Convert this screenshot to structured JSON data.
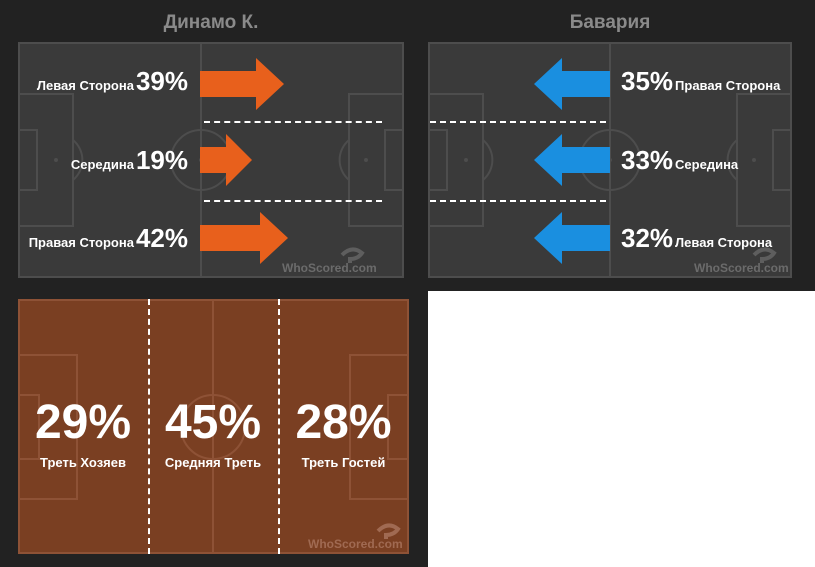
{
  "colors": {
    "background": "#222222",
    "panel": "#3a3a3a",
    "attack_left": "#e8601c",
    "attack_right": "#1a8fe0",
    "zones_bg": "#7a3f22"
  },
  "home": {
    "team": "Динамо К.",
    "rows": [
      {
        "label": "Левая Сторона",
        "pct": "39%",
        "value": 39
      },
      {
        "label": "Середина",
        "pct": "19%",
        "value": 19
      },
      {
        "label": "Правая Сторона",
        "pct": "42%",
        "value": 42
      }
    ],
    "watermark": "WhoScored.com"
  },
  "away": {
    "team": "Бавария",
    "rows": [
      {
        "label": "Правая Сторона",
        "pct": "35%",
        "value": 35
      },
      {
        "label": "Середина",
        "pct": "33%",
        "value": 33
      },
      {
        "label": "Левая Сторона",
        "pct": "32%",
        "value": 32
      }
    ],
    "watermark": "WhoScored.com"
  },
  "zones": {
    "items": [
      {
        "pct": "29%",
        "label": "Треть Хозяев",
        "value": 29
      },
      {
        "pct": "45%",
        "label": "Средняя Треть",
        "value": 45
      },
      {
        "pct": "28%",
        "label": "Треть Гостей",
        "value": 28
      }
    ],
    "watermark": "WhoScored.com"
  }
}
